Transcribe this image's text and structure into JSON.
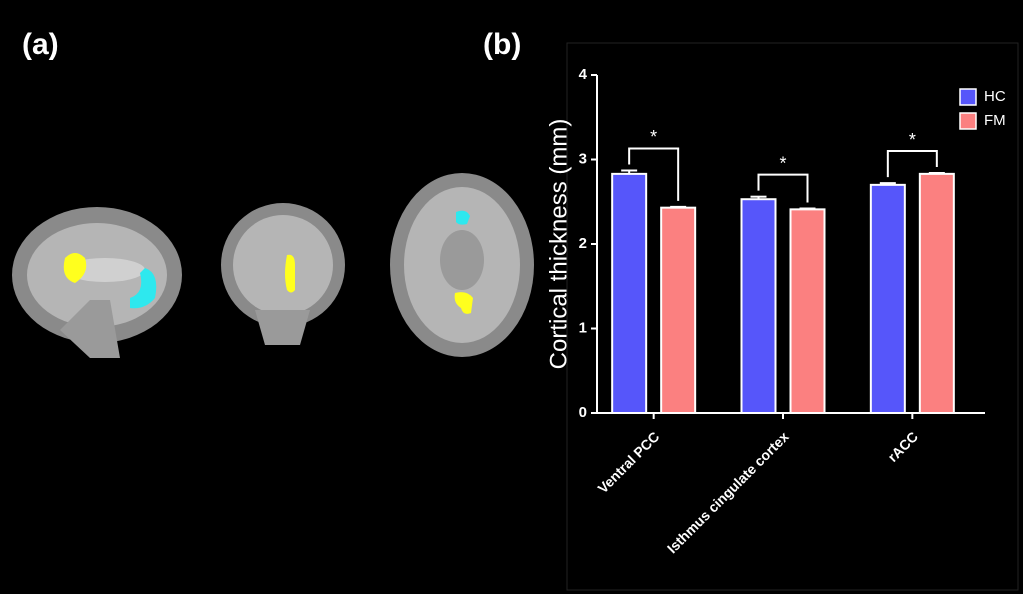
{
  "panel_labels": [
    "(a)",
    "(b)"
  ],
  "chart_data": {
    "type": "bar",
    "ylabel": "Cortical thickness (mm)",
    "categories": [
      "Ventral PCC",
      "Isthmus cingulate cortex",
      "rACC"
    ],
    "series": [
      {
        "name": "HC",
        "color": "#5656fa",
        "values": [
          2.83,
          2.53,
          2.7
        ],
        "errors": [
          0.04,
          0.03,
          0.02
        ]
      },
      {
        "name": "FM",
        "color": "#fb8080",
        "values": [
          2.43,
          2.41,
          2.83
        ],
        "errors": [
          0.01,
          0.01,
          0.01
        ]
      }
    ],
    "annotations": [
      "*",
      "*",
      "*"
    ],
    "ylim": [
      0,
      4
    ],
    "yticks": [
      0,
      1,
      2,
      3,
      4
    ],
    "legend": "top-right"
  }
}
